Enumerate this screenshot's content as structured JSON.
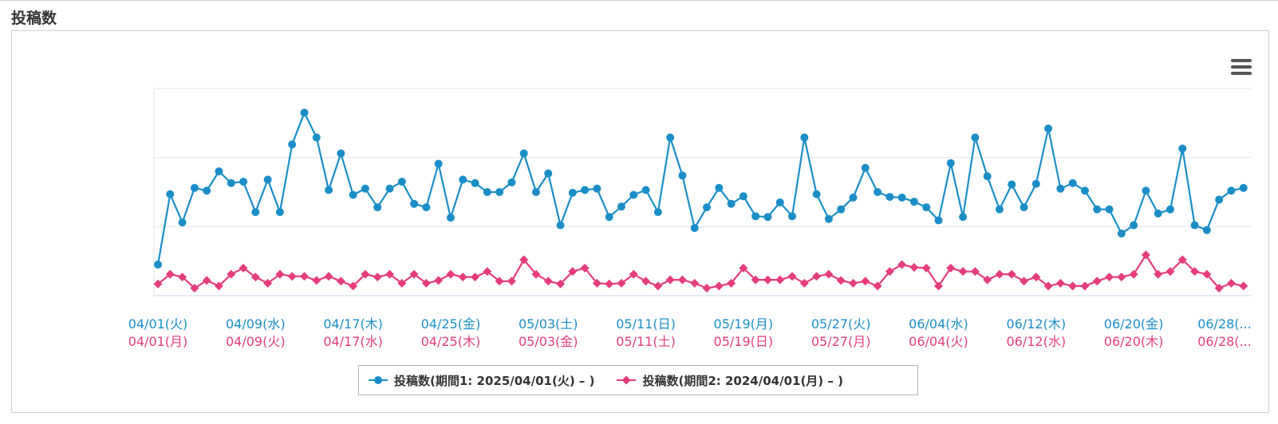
{
  "section": {
    "title": "投稿数"
  },
  "colors": {
    "series1": "#1a8ec8",
    "series2": "#e43d7d",
    "grid": "#e2e6ef",
    "menu": "#555555"
  },
  "icons": {
    "menu": "hamburger-menu-icon"
  },
  "chart_data": {
    "type": "line",
    "title": "",
    "grid": true,
    "legend_position": "bottom-center",
    "ylim": [
      0,
      30
    ],
    "y_ticks_shown": false,
    "x_tick_labels_period1": [
      "04/01(火)",
      "04/09(水)",
      "04/17(木)",
      "04/25(金)",
      "05/03(土)",
      "05/11(日)",
      "05/19(月)",
      "05/27(火)",
      "06/04(水)",
      "06/12(木)",
      "06/20(金)",
      "06/28(..."
    ],
    "x_tick_labels_period2": [
      "04/01(月)",
      "04/09(火)",
      "04/17(水)",
      "04/25(木)",
      "05/03(金)",
      "05/11(土)",
      "05/19(日)",
      "05/27(月)",
      "06/04(火)",
      "06/12(水)",
      "06/20(木)",
      "06/28(..."
    ],
    "series": [
      {
        "name": "投稿数(期間1: 2025/04/01(火) – )",
        "marker": "circle",
        "values": [
          4.5,
          14.7,
          10.6,
          15.6,
          15.2,
          18.0,
          16.3,
          16.5,
          12.1,
          16.8,
          12.1,
          21.9,
          26.5,
          22.9,
          15.3,
          20.6,
          14.6,
          15.5,
          12.8,
          15.5,
          16.5,
          13.3,
          12.8,
          19.1,
          11.3,
          16.8,
          16.3,
          15.0,
          15.0,
          16.4,
          20.6,
          15.0,
          17.7,
          10.2,
          14.9,
          15.3,
          15.5,
          11.4,
          12.9,
          14.6,
          15.3,
          12.1,
          22.9,
          17.4,
          9.8,
          12.8,
          15.6,
          13.3,
          14.4,
          11.5,
          11.4,
          13.5,
          11.5,
          22.9,
          14.7,
          11.1,
          12.5,
          14.2,
          18.5,
          15.0,
          14.3,
          14.2,
          13.6,
          12.8,
          10.9,
          19.2,
          11.4,
          22.9,
          17.3,
          12.5,
          16.1,
          12.8,
          16.2,
          24.2,
          15.5,
          16.3,
          15.2,
          12.5,
          12.5,
          9.0,
          10.2,
          15.2,
          11.9,
          12.5,
          21.3,
          10.2,
          9.5,
          13.9,
          15.2,
          15.6
        ]
      },
      {
        "name": "投稿数(期間2: 2024/04/01(月) – )",
        "marker": "diamond",
        "values": [
          1.7,
          3.1,
          2.7,
          1.1,
          2.2,
          1.4,
          3.1,
          4.0,
          2.7,
          1.8,
          3.1,
          2.8,
          2.8,
          2.2,
          2.8,
          2.1,
          1.4,
          3.1,
          2.7,
          3.1,
          1.8,
          3.1,
          1.8,
          2.2,
          3.1,
          2.7,
          2.7,
          3.5,
          2.1,
          2.1,
          5.2,
          3.1,
          2.1,
          1.7,
          3.5,
          4.0,
          1.8,
          1.7,
          1.8,
          3.1,
          2.1,
          1.4,
          2.3,
          2.3,
          1.8,
          1.1,
          1.4,
          1.8,
          4.0,
          2.3,
          2.3,
          2.3,
          2.8,
          1.8,
          2.8,
          3.1,
          2.2,
          1.8,
          2.1,
          1.4,
          3.5,
          4.5,
          4.1,
          4.0,
          1.4,
          4.0,
          3.5,
          3.5,
          2.3,
          3.1,
          3.1,
          2.1,
          2.7,
          1.4,
          1.8,
          1.4,
          1.4,
          2.1,
          2.7,
          2.7,
          3.1,
          5.9,
          3.1,
          3.5,
          5.2,
          3.5,
          3.1,
          1.1,
          1.8,
          1.4
        ]
      }
    ]
  }
}
